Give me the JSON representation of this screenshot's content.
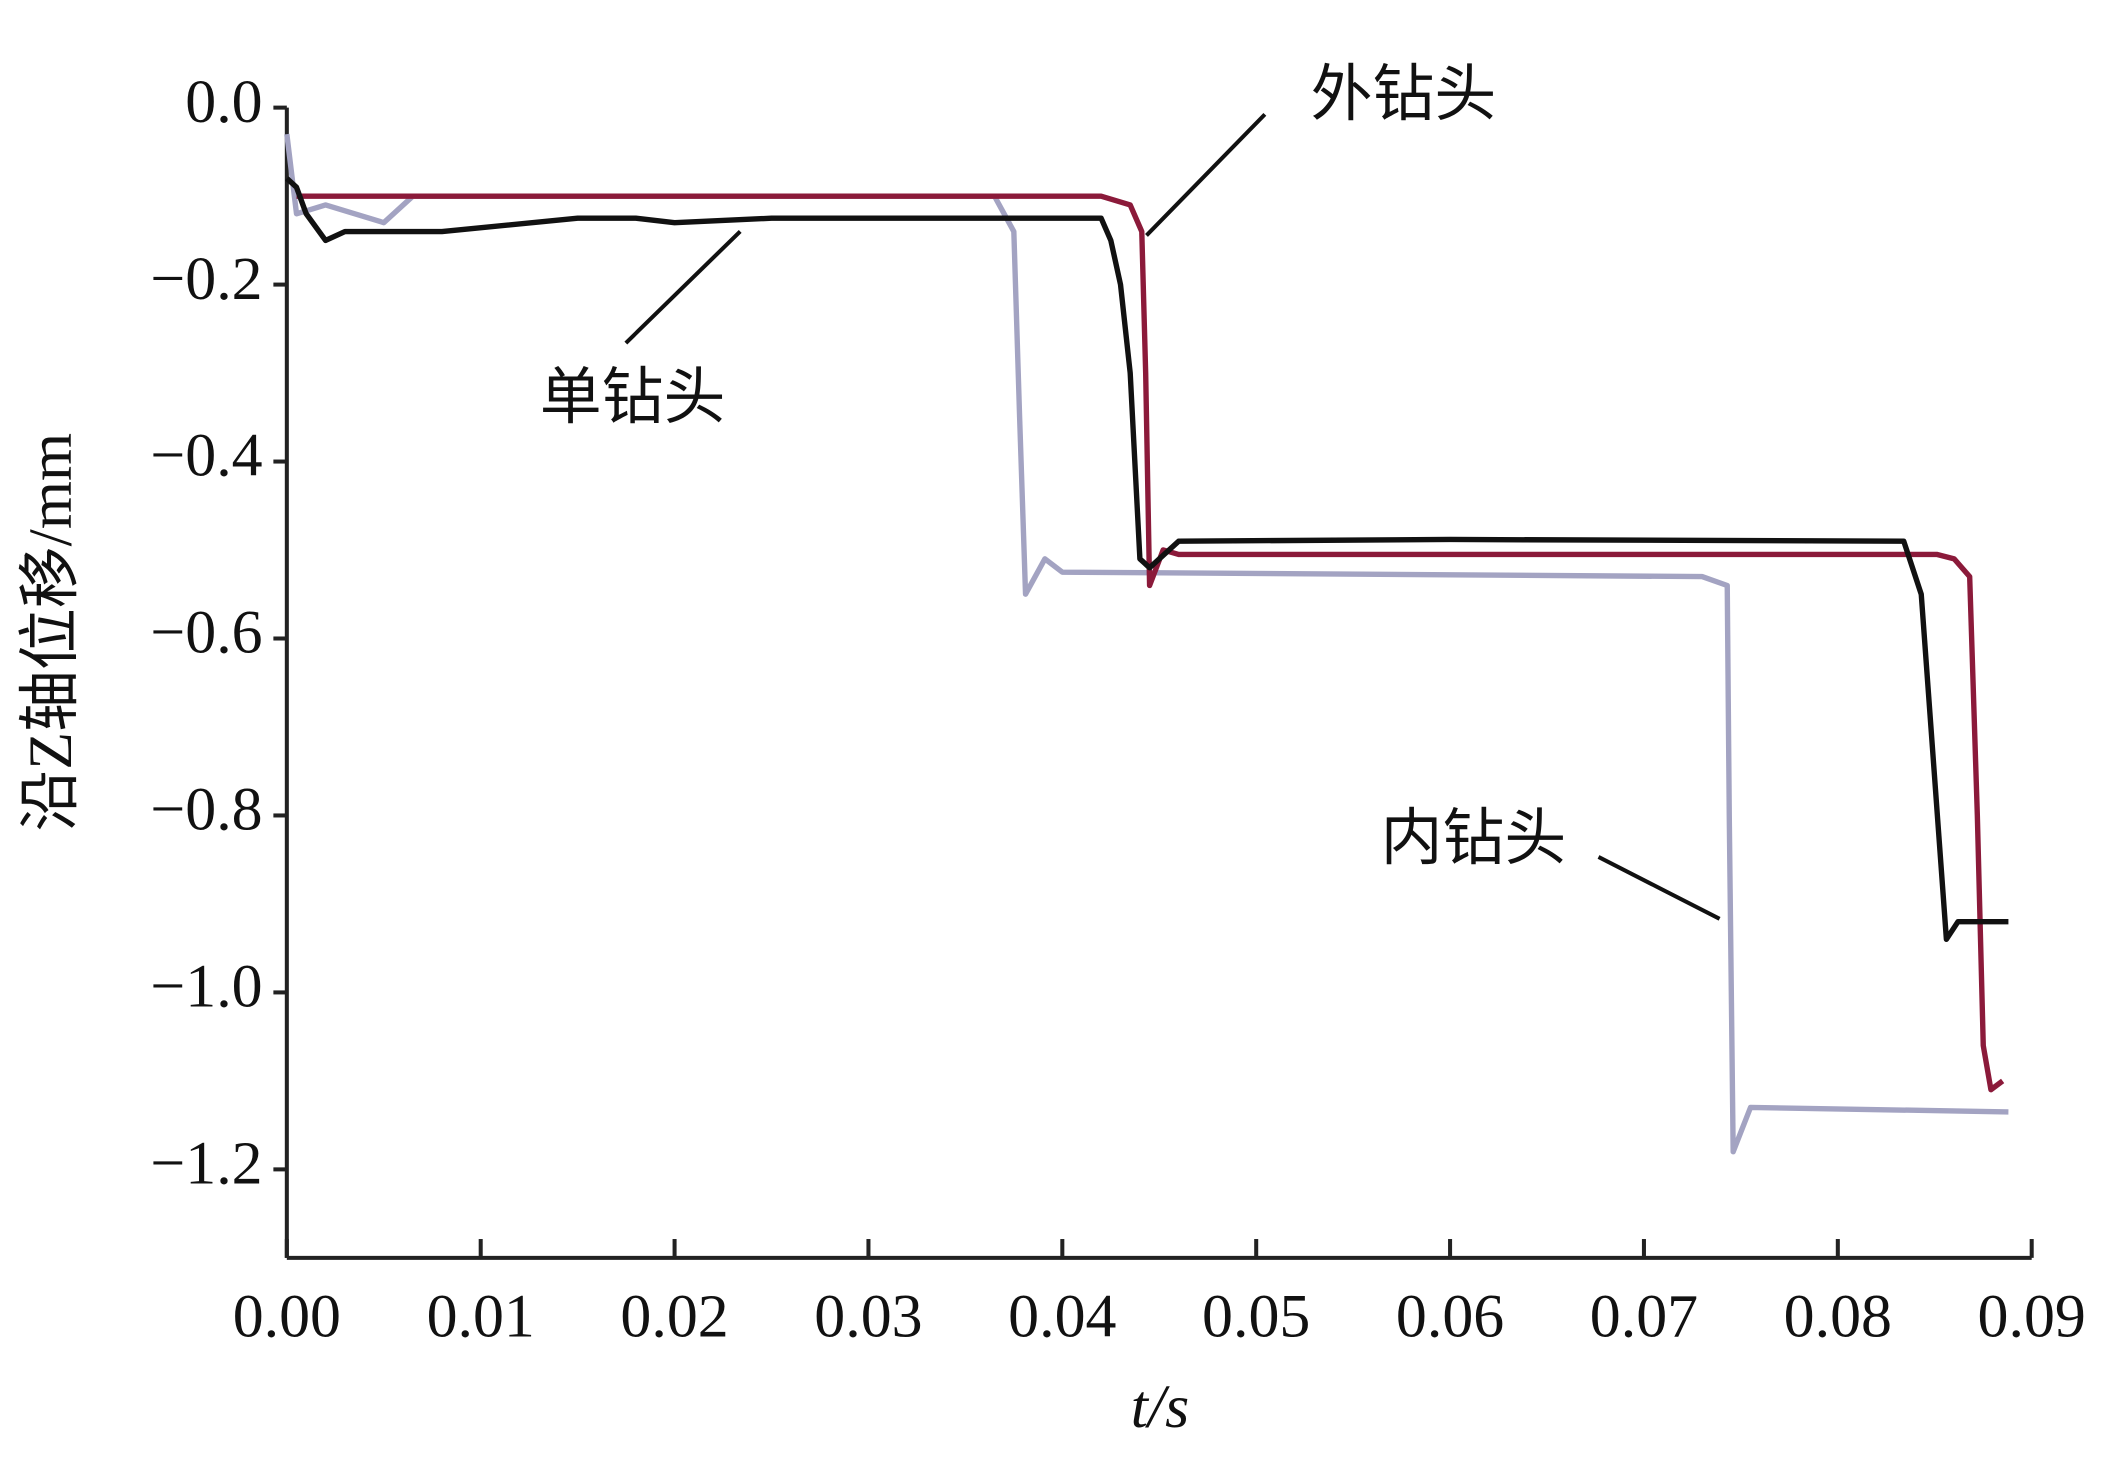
{
  "chart_data": {
    "type": "line",
    "x_label": "t/s",
    "y_label": "沿Z轴位移/mm",
    "xlim": [
      0,
      0.09
    ],
    "ylim": [
      -1.3,
      0
    ],
    "xticks": [
      {
        "value": 0,
        "label": "0.00"
      },
      {
        "value": 0.01,
        "label": "0.01"
      },
      {
        "value": 0.02,
        "label": "0.02"
      },
      {
        "value": 0.03,
        "label": "0.03"
      },
      {
        "value": 0.04,
        "label": "0.04"
      },
      {
        "value": 0.05,
        "label": "0.05"
      },
      {
        "value": 0.06,
        "label": "0.06"
      },
      {
        "value": 0.07,
        "label": "0.07"
      },
      {
        "value": 0.08,
        "label": "0.08"
      },
      {
        "value": 0.09,
        "label": "0.09"
      }
    ],
    "yticks": [
      {
        "value": 0,
        "label": "0.0"
      },
      {
        "value": -0.2,
        "label": "−0.2"
      },
      {
        "value": -0.4,
        "label": "−0.4"
      },
      {
        "value": -0.6,
        "label": "−0.6"
      },
      {
        "value": -0.8,
        "label": "−0.8"
      },
      {
        "value": -1.0,
        "label": "−1.0"
      },
      {
        "value": -1.2,
        "label": "−1.2"
      }
    ],
    "series": [
      {
        "name": "内钻头",
        "color": "#a3a3c2",
        "x": [
          0,
          0.0005,
          0.002,
          0.005,
          0.0065,
          0.0075,
          0.02,
          0.0365,
          0.0375,
          0.0378,
          0.0381,
          0.0391,
          0.04,
          0.06,
          0.073,
          0.0743,
          0.0744,
          0.0746,
          0.0755,
          0.0888
        ],
        "values": [
          -0.03,
          -0.12,
          -0.11,
          -0.13,
          -0.1,
          -0.1,
          -0.1,
          -0.1,
          -0.14,
          -0.35,
          -0.55,
          -0.51,
          -0.525,
          -0.528,
          -0.53,
          -0.54,
          -0.8,
          -1.18,
          -1.13,
          -1.135
        ]
      },
      {
        "name": "外钻头",
        "color": "#8b1a3a",
        "x": [
          0.0005,
          0.02,
          0.042,
          0.0435,
          0.0441,
          0.0443,
          0.0445,
          0.0452,
          0.046,
          0.07,
          0.0851,
          0.086,
          0.0868,
          0.0872,
          0.0875,
          0.0879,
          0.0885
        ],
        "values": [
          -0.1,
          -0.1,
          -0.1,
          -0.11,
          -0.14,
          -0.3,
          -0.54,
          -0.5,
          -0.505,
          -0.505,
          -0.505,
          -0.51,
          -0.53,
          -0.8,
          -1.06,
          -1.11,
          -1.1
        ]
      },
      {
        "name": "单钻头",
        "color": "#111111",
        "x": [
          0,
          0.0005,
          0.001,
          0.002,
          0.003,
          0.008,
          0.015,
          0.018,
          0.02,
          0.025,
          0.03,
          0.042,
          0.0425,
          0.043,
          0.0435,
          0.044,
          0.0445,
          0.046,
          0.06,
          0.0834,
          0.0843,
          0.0848,
          0.0856,
          0.0862,
          0.0888
        ],
        "values": [
          -0.08,
          -0.09,
          -0.12,
          -0.15,
          -0.14,
          -0.14,
          -0.125,
          -0.125,
          -0.13,
          -0.125,
          -0.125,
          -0.125,
          -0.15,
          -0.2,
          -0.3,
          -0.51,
          -0.52,
          -0.49,
          -0.488,
          -0.49,
          -0.55,
          -0.7,
          -0.94,
          -0.92,
          -0.92
        ]
      }
    ]
  }
}
